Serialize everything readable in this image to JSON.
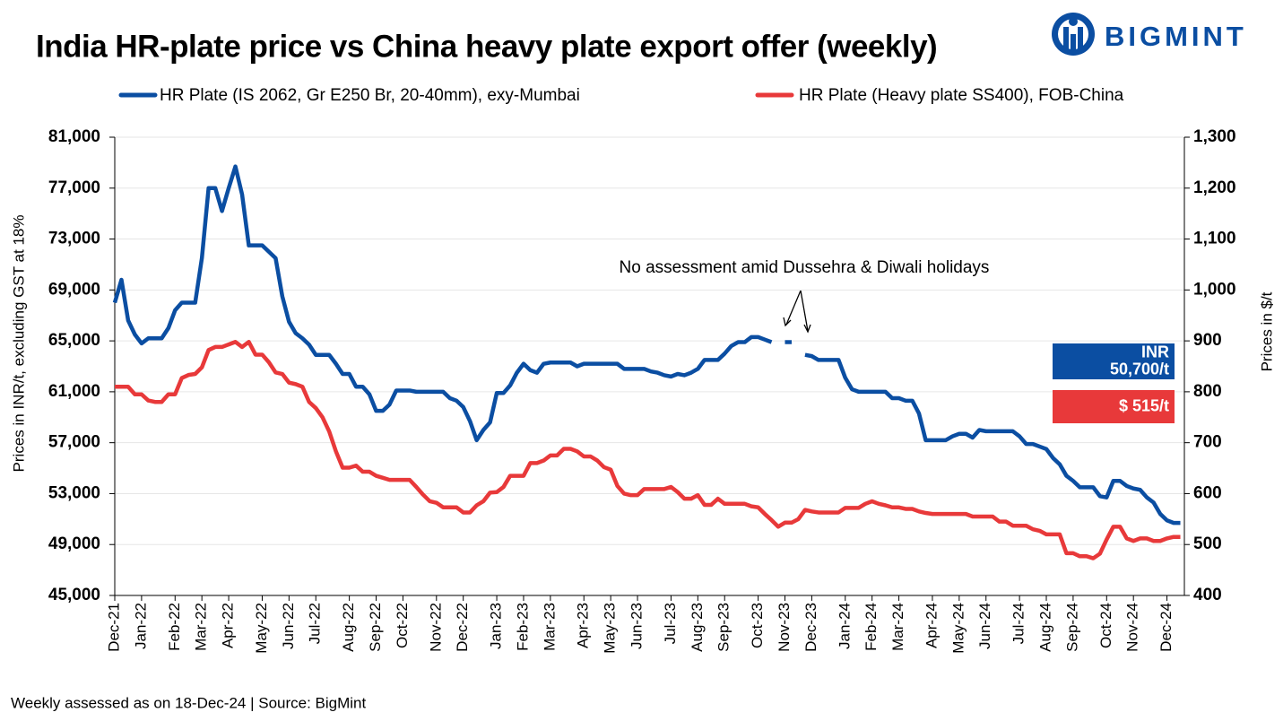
{
  "chart_data": {
    "type": "line",
    "title": "India HR-plate price vs China heavy plate export offer (weekly)",
    "logo": "BIGMINT",
    "y_label": "Prices in INR/t, excluding GST at 18%",
    "y2_label": "Prices in $/t",
    "annotation": "No assessment amid Dussehra & Diwali holidays",
    "footnote": "Weekly assessed as on 18-Dec-24 | Source: BigMint",
    "grid": true,
    "ylim": [
      45000,
      81000
    ],
    "yticks": [
      {
        "value": 45000,
        "label": "45,000"
      },
      {
        "value": 49000,
        "label": "49,000"
      },
      {
        "value": 53000,
        "label": "53,000"
      },
      {
        "value": 57000,
        "label": "57,000"
      },
      {
        "value": 61000,
        "label": "61,000"
      },
      {
        "value": 65000,
        "label": "65,000"
      },
      {
        "value": 69000,
        "label": "69,000"
      },
      {
        "value": 73000,
        "label": "73,000"
      },
      {
        "value": 77000,
        "label": "77,000"
      },
      {
        "value": 81000,
        "label": "81,000"
      }
    ],
    "y2lim": [
      400,
      1300
    ],
    "y2ticks": [
      400,
      500,
      600,
      700,
      800,
      900,
      {
        "value": 1000,
        "label": "1,000"
      },
      {
        "value": 1100,
        "label": "1,100"
      },
      {
        "value": 1200,
        "label": "1,200"
      },
      {
        "value": 1300,
        "label": "1,300"
      }
    ],
    "categories": [
      "Dec-21",
      null,
      null,
      null,
      "Jan-22",
      null,
      null,
      null,
      null,
      "Feb-22",
      null,
      null,
      null,
      "Mar-22",
      null,
      null,
      null,
      "Apr-22",
      null,
      null,
      null,
      null,
      "May-22",
      null,
      null,
      null,
      "Jun-22",
      null,
      null,
      null,
      "Jul-22",
      null,
      null,
      null,
      null,
      "Aug-22",
      null,
      null,
      null,
      "Sep-22",
      null,
      null,
      null,
      "Oct-22",
      null,
      null,
      null,
      null,
      "Nov-22",
      null,
      null,
      null,
      "Dec-22",
      null,
      null,
      null,
      null,
      "Jan-23",
      null,
      null,
      null,
      "Feb-23",
      null,
      null,
      null,
      "Mar-23",
      null,
      null,
      null,
      null,
      "Apr-23",
      null,
      null,
      null,
      "May-23",
      null,
      null,
      null,
      "Jun-23",
      null,
      null,
      null,
      null,
      "Jul-23",
      null,
      null,
      null,
      "Aug-23",
      null,
      null,
      null,
      "Sep-23",
      null,
      null,
      null,
      null,
      "Oct-23",
      null,
      null,
      null,
      "Nov-23",
      null,
      null,
      null,
      "Dec-23",
      null,
      null,
      null,
      null,
      "Jan-24",
      null,
      null,
      null,
      "Feb-24",
      null,
      null,
      null,
      "Mar-24",
      null,
      null,
      null,
      null,
      "Apr-24",
      null,
      null,
      null,
      "May-24",
      null,
      null,
      null,
      "Jun-24",
      null,
      null,
      null,
      null,
      "Jul-24",
      null,
      null,
      null,
      "Aug-24",
      null,
      null,
      null,
      "Sep-24",
      null,
      null,
      null,
      null,
      "Oct-24",
      null,
      null,
      null,
      "Nov-24",
      null,
      null,
      null,
      null,
      "Dec-24",
      null,
      null
    ],
    "series": [
      {
        "name": "HR Plate (IS 2062, Gr E250 Br, 20-40mm), exy-Mumbai",
        "color": "#0b4ea2",
        "axis": "y",
        "end_label": [
          "INR",
          "50,700/t"
        ],
        "values": [
          68000,
          69800,
          66600,
          65500,
          64800,
          65200,
          65200,
          65200,
          66000,
          67400,
          68000,
          68000,
          68000,
          71500,
          77000,
          77000,
          75200,
          77000,
          78700,
          76500,
          72500,
          72500,
          72500,
          72000,
          71500,
          68500,
          66500,
          65600,
          65200,
          64700,
          63900,
          63900,
          63900,
          63200,
          62400,
          62400,
          61400,
          61400,
          60800,
          59500,
          59500,
          60000,
          61100,
          61100,
          61100,
          61000,
          61000,
          61000,
          61000,
          61000,
          60500,
          60300,
          59800,
          58700,
          57200,
          58000,
          58600,
          60900,
          60900,
          61500,
          62500,
          63200,
          62700,
          62500,
          63200,
          63300,
          63300,
          63300,
          63300,
          63000,
          63200,
          63200,
          63200,
          63200,
          63200,
          63200,
          62800,
          62800,
          62800,
          62800,
          62600,
          62500,
          62300,
          62200,
          62400,
          62300,
          62500,
          62800,
          63500,
          63500,
          63500,
          64000,
          64600,
          64900,
          64900,
          65300,
          65300,
          65100,
          64900,
          null,
          64900,
          64900,
          null,
          63900,
          63800,
          63500,
          63500,
          63500,
          63500,
          62100,
          61200,
          61000,
          61000,
          61000,
          61000,
          61000,
          60500,
          60500,
          60300,
          60300,
          59300,
          57200,
          57200,
          57200,
          57200,
          57500,
          57700,
          57700,
          57400,
          58000,
          57900,
          57900,
          57900,
          57900,
          57900,
          57500,
          56900,
          56900,
          56700,
          56500,
          55800,
          55300,
          54400,
          54000,
          53500,
          53500,
          53500,
          52800,
          52700,
          54000,
          54000,
          53600,
          53400,
          53300,
          52700,
          52300,
          51400,
          50900,
          50700,
          50700
        ]
      },
      {
        "name": "HR Plate (Heavy plate SS400), FOB-China",
        "color": "#e8393a",
        "axis": "y2",
        "end_label": [
          "$ 515/t"
        ],
        "values": [
          810,
          810,
          810,
          795,
          795,
          783,
          780,
          780,
          795,
          795,
          827,
          833,
          835,
          848,
          882,
          888,
          888,
          893,
          898,
          888,
          898,
          873,
          873,
          858,
          838,
          835,
          818,
          815,
          810,
          780,
          768,
          750,
          722,
          683,
          651,
          651,
          655,
          643,
          643,
          635,
          631,
          627,
          627,
          627,
          627,
          613,
          598,
          585,
          582,
          573,
          573,
          573,
          563,
          563,
          577,
          585,
          602,
          603,
          613,
          635,
          635,
          635,
          660,
          660,
          665,
          675,
          675,
          688,
          688,
          683,
          673,
          673,
          665,
          652,
          647,
          615,
          600,
          597,
          597,
          609,
          609,
          609,
          609,
          613,
          603,
          590,
          590,
          597,
          578,
          578,
          590,
          580,
          580,
          580,
          580,
          575,
          573,
          560,
          548,
          535,
          543,
          543,
          550,
          568,
          565,
          563,
          563,
          563,
          563,
          572,
          572,
          572,
          580,
          585,
          580,
          577,
          573,
          573,
          570,
          570,
          565,
          562,
          560,
          560,
          560,
          560,
          560,
          560,
          555,
          555,
          555,
          555,
          545,
          545,
          537,
          537,
          537,
          530,
          527,
          520,
          520,
          520,
          483,
          483,
          477,
          477,
          473,
          482,
          510,
          535,
          535,
          512,
          507,
          512,
          512,
          507,
          507,
          512,
          515,
          515
        ]
      }
    ]
  }
}
